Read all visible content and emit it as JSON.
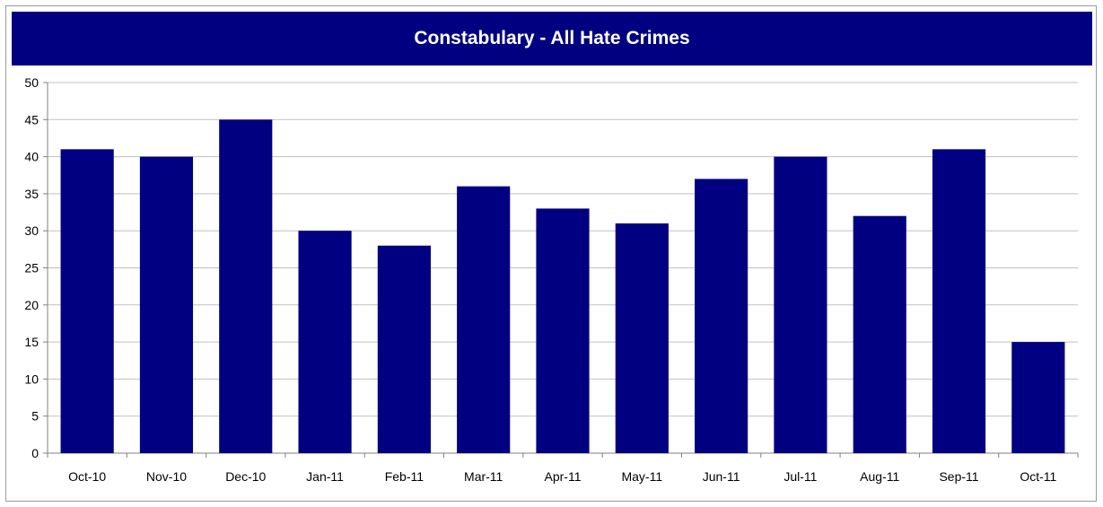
{
  "chart_data": {
    "type": "bar",
    "title": "Constabulary - All Hate Crimes",
    "categories": [
      "Oct-10",
      "Nov-10",
      "Dec-10",
      "Jan-11",
      "Feb-11",
      "Mar-11",
      "Apr-11",
      "May-11",
      "Jun-11",
      "Jul-11",
      "Aug-11",
      "Sep-11",
      "Oct-11"
    ],
    "values": [
      41,
      40,
      45,
      30,
      28,
      36,
      33,
      31,
      37,
      40,
      32,
      41,
      15
    ],
    "xlabel": "",
    "ylabel": "",
    "ylim": [
      0,
      50
    ],
    "yticks": [
      0,
      5,
      10,
      15,
      20,
      25,
      30,
      35,
      40,
      45,
      50
    ],
    "grid": true,
    "legend": "none",
    "bar_color": "#000080",
    "title_background": "#000080",
    "title_color": "#ffffff"
  }
}
